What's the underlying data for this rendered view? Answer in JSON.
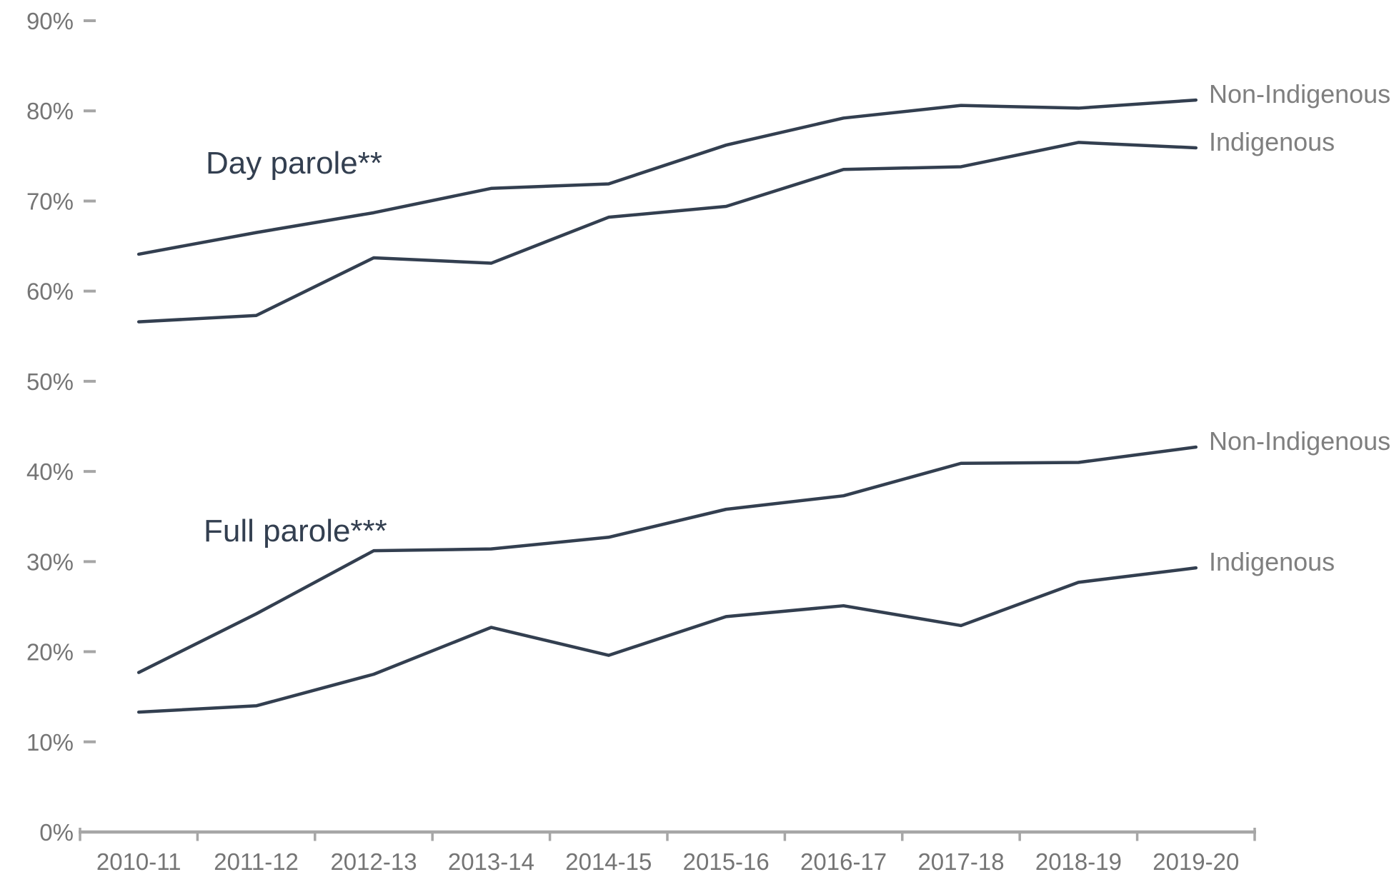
{
  "chart_data": {
    "type": "line",
    "categories": [
      "2010-11",
      "2011-12",
      "2012-13",
      "2013-14",
      "2014-15",
      "2015-16",
      "2016-17",
      "2017-18",
      "2018-19",
      "2019-20"
    ],
    "groups": [
      {
        "title": "Day parole**",
        "series": [
          {
            "name": "Non-Indigenous",
            "values": [
              64.1,
              66.5,
              68.7,
              71.4,
              71.9,
              76.2,
              79.2,
              80.6,
              80.3,
              81.2
            ]
          },
          {
            "name": "Indigenous",
            "values": [
              56.6,
              57.3,
              63.7,
              63.1,
              68.2,
              69.4,
              73.5,
              73.8,
              76.5,
              75.9
            ]
          }
        ]
      },
      {
        "title": "Full parole***",
        "series": [
          {
            "name": "Non-Indigenous",
            "values": [
              17.7,
              24.2,
              31.2,
              31.4,
              32.7,
              35.8,
              37.3,
              40.9,
              41.0,
              42.7
            ]
          },
          {
            "name": "Indigenous",
            "values": [
              13.3,
              14.0,
              17.5,
              22.7,
              19.6,
              23.9,
              25.1,
              22.9,
              27.7,
              29.3
            ]
          }
        ]
      }
    ],
    "y_axis": {
      "min": 0,
      "max": 90,
      "tick_step": 10,
      "tick_suffix": "%"
    },
    "x_axis": {
      "label_rows": 1
    },
    "grid": false,
    "legend_position": "right-of-line-end",
    "colors": {
      "line": "#333F50",
      "title": "#333F50",
      "axis": "#A6A6A6",
      "tick_label": "#757575",
      "series_label": "#7F7F7F",
      "background": "#FFFFFF"
    }
  }
}
